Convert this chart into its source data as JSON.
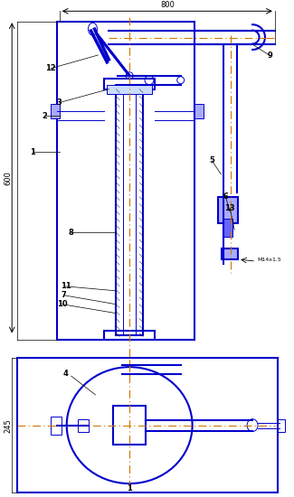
{
  "title": "",
  "bg_color": "#ffffff",
  "blue": "#0000cc",
  "dark_blue": "#0000aa",
  "orange": "#cc7700",
  "light_orange": "#ffaa33",
  "black": "#000000",
  "gray": "#888888",
  "dim_color": "#000000",
  "label_color": "#000000",
  "lw_main": 1.5,
  "lw_thin": 0.7,
  "lw_dim": 0.8
}
